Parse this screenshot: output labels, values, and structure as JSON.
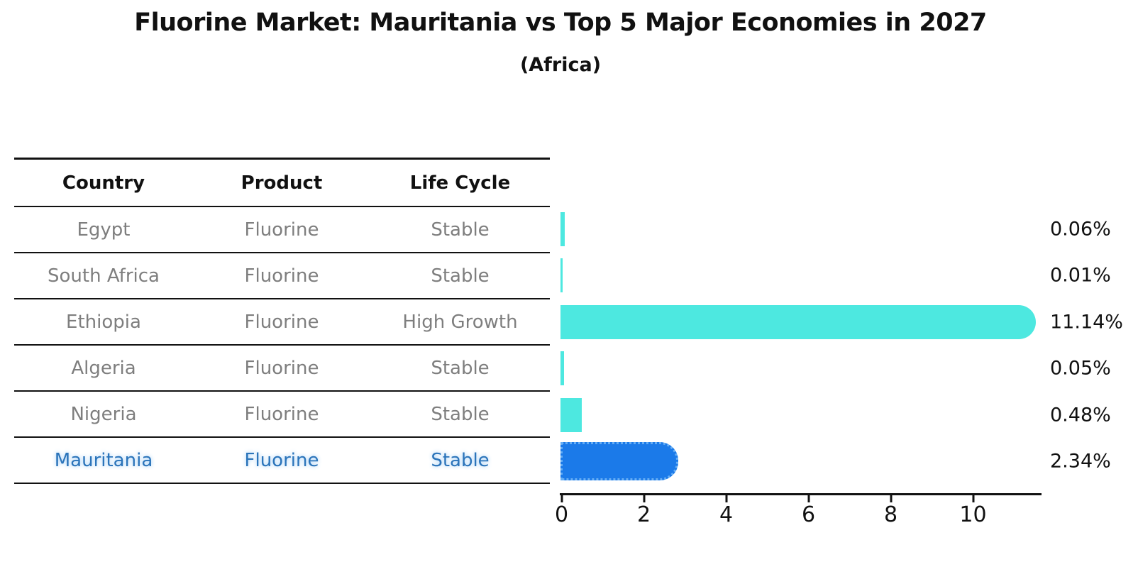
{
  "title": "Fluorine Market: Mauritania vs Top 5 Major Economies in 2027",
  "subtitle": "(Africa)",
  "table": {
    "headers": [
      "Country",
      "Product",
      "Life Cycle"
    ],
    "rows": [
      {
        "country": "Egypt",
        "product": "Fluorine",
        "life_cycle": "Stable",
        "highlight": false
      },
      {
        "country": "South Africa",
        "product": "Fluorine",
        "life_cycle": "Stable",
        "highlight": false
      },
      {
        "country": "Ethiopia",
        "product": "Fluorine",
        "life_cycle": "High Growth",
        "highlight": false
      },
      {
        "country": "Algeria",
        "product": "Fluorine",
        "life_cycle": "Stable",
        "highlight": false
      },
      {
        "country": "Nigeria",
        "product": "Fluorine",
        "life_cycle": "Stable",
        "highlight": false
      },
      {
        "country": "Mauritania",
        "product": "Fluorine",
        "life_cycle": "Stable",
        "highlight": true
      }
    ]
  },
  "chart_data": {
    "type": "bar",
    "orientation": "horizontal",
    "title": "Fluorine Market: Mauritania vs Top 5 Major Economies in 2027",
    "subtitle": "(Africa)",
    "categories": [
      "Egypt",
      "South Africa",
      "Ethiopia",
      "Algeria",
      "Nigeria",
      "Mauritania"
    ],
    "values": [
      0.06,
      0.01,
      11.14,
      0.05,
      0.48,
      2.34
    ],
    "value_labels": [
      "0.06%",
      "0.01%",
      "11.14%",
      "0.05%",
      "0.48%",
      "2.34%"
    ],
    "x_ticks": [
      "0",
      "2",
      "4",
      "6",
      "8",
      "10"
    ],
    "x_tick_values": [
      0,
      2,
      4,
      6,
      8,
      10
    ],
    "xlim": [
      0,
      11.7
    ],
    "grid": false,
    "legend": false,
    "highlight_index": 5
  },
  "colors": {
    "bar": "#4de8e0",
    "highlight_bar": "#1b7ae9",
    "highlight_bar_border": "#66aef5",
    "highlight_text": "#2b74ba",
    "table_text": "#7e7e7e",
    "heading_text": "#111111",
    "background": "#ffffff"
  }
}
